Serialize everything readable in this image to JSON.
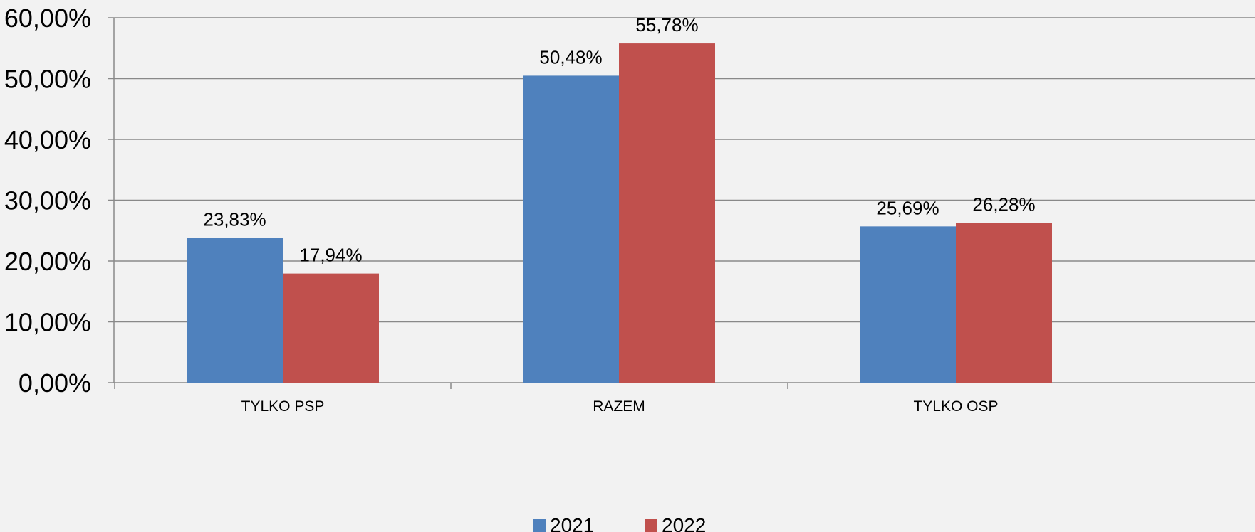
{
  "chart_data": {
    "type": "bar",
    "title": "",
    "xlabel": "",
    "ylabel": "",
    "categories": [
      "TYLKO PSP",
      "RAZEM",
      "TYLKO OSP"
    ],
    "series": [
      {
        "name": "2021",
        "values": [
          23.83,
          50.48,
          25.69
        ],
        "labels": [
          "23,83%",
          "50,48%",
          "25,69%"
        ],
        "color": "#4f81bd"
      },
      {
        "name": "2022",
        "values": [
          17.94,
          55.78,
          26.28
        ],
        "labels": [
          "17,94%",
          "55,78%",
          "26,28%"
        ],
        "color": "#c0504d"
      }
    ],
    "ylim": [
      0,
      60
    ],
    "yticks": [
      0,
      10,
      20,
      30,
      40,
      50,
      60
    ],
    "ytick_labels": [
      "0,00%",
      "10,00%",
      "20,00%",
      "30,00%",
      "40,00%",
      "50,00%",
      "60,00%"
    ],
    "grid": true,
    "legend_position": "bottom"
  }
}
